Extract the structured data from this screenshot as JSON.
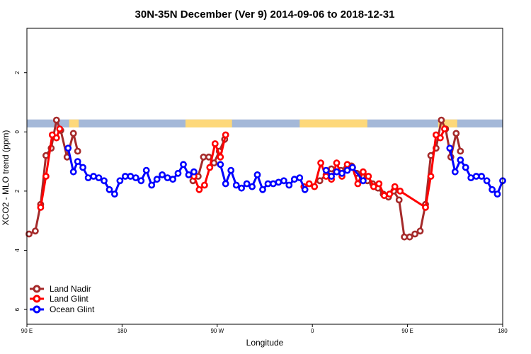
{
  "chart_data": {
    "type": "line",
    "title": "30N-35N December (Ver 9)   2014-09-06 to 2018-12-31",
    "xlabel": "Longitude",
    "ylabel": "XCO2 - MLO trend (ppm)",
    "xlim": [
      0,
      450
    ],
    "ylim": [
      -6.5,
      3.5
    ],
    "x_ticks": [
      {
        "value": 0,
        "label": "90 E"
      },
      {
        "value": 90,
        "label": "180"
      },
      {
        "value": 180,
        "label": "90 W"
      },
      {
        "value": 270,
        "label": "0"
      },
      {
        "value": 360,
        "label": "90 E"
      },
      {
        "value": 450,
        "label": "180"
      }
    ],
    "y_ticks": [
      {
        "value": 2,
        "label": "2"
      },
      {
        "value": 0,
        "label": "0"
      },
      {
        "value": -2,
        "label": "2"
      },
      {
        "value": -4,
        "label": "4"
      },
      {
        "value": -6,
        "label": "6"
      }
    ],
    "grid": false,
    "legend_position": "bottom-left",
    "land_mask_band": {
      "y_range": [
        0.15,
        0.42
      ],
      "ocean_color": "#a4b8d8",
      "land_color": "#fdd87a",
      "land_segments": [
        [
          40,
          49
        ],
        [
          150,
          194
        ],
        [
          258,
          322
        ],
        [
          389,
          407
        ]
      ]
    },
    "series": [
      {
        "name": "Land Nadir",
        "color": "#a52a2a",
        "segments": [
          [
            [
              2,
              -3.45
            ],
            [
              8,
              -3.35
            ],
            [
              13,
              -2.45
            ],
            [
              18,
              -0.8
            ],
            [
              23,
              -0.55
            ],
            [
              28,
              0.4
            ],
            [
              32,
              0.05
            ],
            [
              38,
              -0.85
            ],
            [
              44,
              -0.05
            ],
            [
              48,
              -0.65
            ]
          ],
          [
            [
              157,
              -1.65
            ],
            [
              162,
              -1.5
            ],
            [
              167,
              -0.85
            ],
            [
              172,
              -0.85
            ],
            [
              177,
              -1.05
            ],
            [
              182,
              -0.65
            ],
            [
              187,
              -0.25
            ]
          ],
          [
            [
              277,
              -1.65
            ],
            [
              283,
              -1.45
            ],
            [
              288,
              -1.25
            ],
            [
              293,
              -1.35
            ],
            [
              297,
              -1.3
            ],
            [
              302,
              -1.25
            ],
            [
              307,
              -1.15
            ],
            [
              312,
              -1.4
            ],
            [
              317,
              -1.5
            ],
            [
              322,
              -1.65
            ],
            [
              327,
              -1.75
            ],
            [
              332,
              -1.9
            ],
            [
              337,
              -2.1
            ],
            [
              342,
              -2.2
            ],
            [
              347,
              -2.0
            ],
            [
              352,
              -2.3
            ],
            [
              357,
              -3.55
            ],
            [
              362,
              -3.55
            ],
            [
              367,
              -3.45
            ],
            [
              372,
              -3.35
            ],
            [
              377,
              -2.45
            ],
            [
              382,
              -0.8
            ],
            [
              387,
              -0.55
            ],
            [
              392,
              0.4
            ],
            [
              396,
              0.1
            ],
            [
              401,
              -0.85
            ],
            [
              406,
              -0.05
            ],
            [
              410,
              -0.65
            ]
          ]
        ]
      },
      {
        "name": "Land Glint",
        "color": "#ff0000",
        "segments": [
          [
            [
              13,
              -2.55
            ],
            [
              18,
              -1.5
            ],
            [
              24,
              -0.1
            ],
            [
              28,
              -0.2
            ],
            [
              31,
              0.1
            ]
          ],
          [
            [
              158,
              -1.5
            ],
            [
              163,
              -1.95
            ],
            [
              168,
              -1.8
            ],
            [
              173,
              -1.2
            ],
            [
              178,
              -0.4
            ],
            [
              183,
              -0.85
            ],
            [
              188,
              -0.1
            ]
          ],
          [
            [
              262,
              -1.85
            ],
            [
              267,
              -1.75
            ],
            [
              272,
              -1.85
            ],
            [
              278,
              -1.05
            ],
            [
              283,
              -1.5
            ],
            [
              288,
              -1.6
            ],
            [
              293,
              -1.05
            ],
            [
              298,
              -1.5
            ],
            [
              303,
              -1.1
            ],
            [
              308,
              -1.2
            ],
            [
              313,
              -1.75
            ],
            [
              318,
              -1.35
            ],
            [
              323,
              -1.5
            ],
            [
              328,
              -1.85
            ],
            [
              333,
              -1.75
            ],
            [
              338,
              -2.15
            ],
            [
              343,
              -2.1
            ],
            [
              348,
              -1.85
            ],
            [
              353,
              -2.0
            ],
            [
              377,
              -2.55
            ],
            [
              382,
              -1.5
            ],
            [
              387,
              -0.1
            ],
            [
              391,
              -0.2
            ],
            [
              395,
              0.1
            ]
          ]
        ]
      },
      {
        "name": "Ocean Glint",
        "color": "#0000ff",
        "segments": [
          [
            [
              39,
              -0.55
            ],
            [
              44,
              -1.35
            ],
            [
              48,
              -1.0
            ],
            [
              53,
              -1.2
            ],
            [
              58,
              -1.55
            ],
            [
              63,
              -1.5
            ],
            [
              68,
              -1.55
            ],
            [
              73,
              -1.65
            ],
            [
              78,
              -1.95
            ],
            [
              83,
              -2.1
            ],
            [
              88,
              -1.65
            ],
            [
              93,
              -1.5
            ],
            [
              98,
              -1.5
            ],
            [
              103,
              -1.55
            ],
            [
              108,
              -1.65
            ],
            [
              113,
              -1.3
            ],
            [
              118,
              -1.8
            ],
            [
              123,
              -1.6
            ],
            [
              128,
              -1.45
            ],
            [
              133,
              -1.55
            ],
            [
              138,
              -1.6
            ],
            [
              143,
              -1.4
            ],
            [
              148,
              -1.1
            ],
            [
              153,
              -1.45
            ],
            [
              158,
              -1.35
            ]
          ],
          [
            [
              183,
              -1.1
            ],
            [
              188,
              -1.75
            ],
            [
              193,
              -1.3
            ],
            [
              198,
              -1.8
            ],
            [
              203,
              -1.9
            ],
            [
              208,
              -1.75
            ],
            [
              213,
              -1.85
            ],
            [
              218,
              -1.45
            ],
            [
              223,
              -1.95
            ],
            [
              228,
              -1.75
            ],
            [
              233,
              -1.75
            ],
            [
              238,
              -1.7
            ],
            [
              243,
              -1.65
            ],
            [
              248,
              -1.8
            ],
            [
              253,
              -1.6
            ],
            [
              258,
              -1.55
            ],
            [
              263,
              -1.95
            ]
          ],
          [
            [
              283,
              -1.3
            ],
            [
              288,
              -1.5
            ],
            [
              293,
              -1.35
            ],
            [
              298,
              -1.4
            ],
            [
              303,
              -1.3
            ],
            [
              308,
              -1.2
            ],
            [
              318,
              -1.65
            ]
          ],
          [
            [
              400,
              -0.55
            ],
            [
              405,
              -1.35
            ],
            [
              410,
              -0.95
            ],
            [
              415,
              -1.2
            ],
            [
              420,
              -1.55
            ],
            [
              425,
              -1.5
            ],
            [
              430,
              -1.5
            ],
            [
              435,
              -1.65
            ],
            [
              440,
              -1.95
            ],
            [
              445,
              -2.1
            ],
            [
              450,
              -1.65
            ]
          ]
        ]
      }
    ]
  }
}
